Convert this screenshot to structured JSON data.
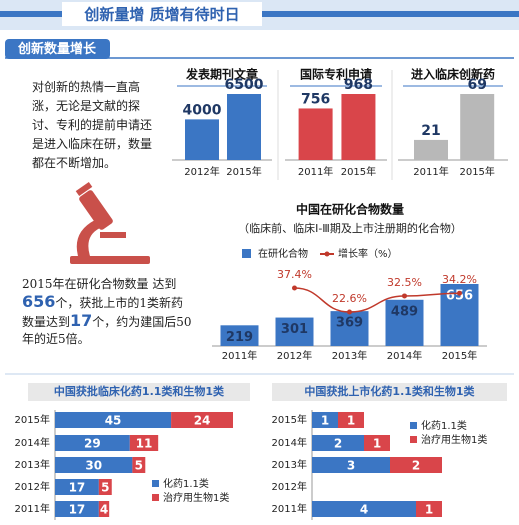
{
  "header": {
    "title": "创新量增 质增有待时日",
    "section": "创新数量增长"
  },
  "intro_text": "对创新的热情一直高涨，无论是文献的探讨、专利的提前申请还是进入临床在研，数量都在不断增加。",
  "summary_text": [
    "2015年在研化合物数量 达到",
    "656",
    "个，获批上市的1类新药数量达到",
    "17",
    "个，约为建国后50年的近5倍。"
  ],
  "chart_data": [
    {
      "type": "bar",
      "title": "发表期刊文章",
      "categories": [
        "2012年",
        "2015年"
      ],
      "values": [
        4000,
        6500
      ],
      "color": "#3b76c4"
    },
    {
      "type": "bar",
      "title": "国际专利申请",
      "categories": [
        "2011年",
        "2015年"
      ],
      "values": [
        756,
        968
      ],
      "color": "#d9454a"
    },
    {
      "type": "bar",
      "title": "进入临床创新药",
      "categories": [
        "2011年",
        "2015年"
      ],
      "values": [
        21,
        69
      ],
      "color": "#b8b8b8"
    },
    {
      "type": "combo",
      "title": "中国在研化合物数量",
      "subtitle": "（临床前、临床Ⅰ-Ⅲ期及上市注册期的化合物）",
      "categories": [
        "2011年",
        "2012年",
        "2013年",
        "2014年",
        "2015年"
      ],
      "series": [
        {
          "name": "在研化合物",
          "type": "bar",
          "color": "#3b76c4",
          "values": [
            219,
            301,
            369,
            489,
            656
          ]
        },
        {
          "name": "增长率（%）",
          "type": "line",
          "axis": "y2",
          "color": "#c0392b",
          "values": [
            null,
            37.4,
            22.6,
            32.5,
            34.2
          ],
          "value_labels": [
            null,
            "37.4%",
            "22.6%",
            "32.5%",
            "34.2%"
          ]
        }
      ]
    },
    {
      "type": "hbar",
      "stacked": true,
      "title": "中国获批临床化药1.1类和生物1类",
      "categories": [
        "2015年",
        "2014年",
        "2013年",
        "2012年",
        "2011年"
      ],
      "series": [
        {
          "name": "化药1.1类",
          "color": "#3b76c4",
          "values": [
            45,
            29,
            30,
            17,
            17
          ]
        },
        {
          "name": "治疗用生物1类",
          "color": "#d9454a",
          "values": [
            24,
            11,
            5,
            5,
            4
          ]
        }
      ]
    },
    {
      "type": "hbar",
      "stacked": true,
      "title": "中国获批上市化药1.1类和生物1类",
      "categories": [
        "2015年",
        "2014年",
        "2013年",
        "2012年",
        "2011年"
      ],
      "series": [
        {
          "name": "化药1.1类",
          "color": "#3b76c4",
          "values": [
            1,
            2,
            3,
            null,
            4
          ]
        },
        {
          "name": "治疗用生物1类",
          "color": "#d9454a",
          "values": [
            1,
            1,
            2,
            null,
            1
          ]
        }
      ]
    }
  ]
}
